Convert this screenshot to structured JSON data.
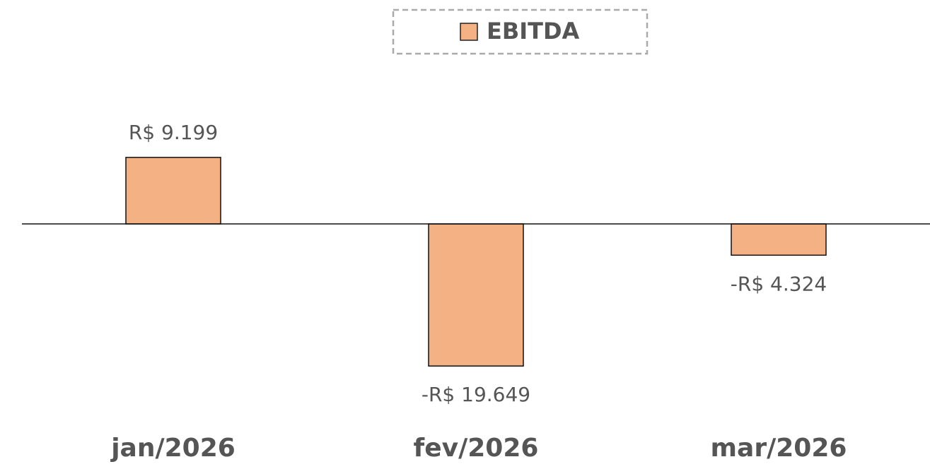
{
  "chart_data": {
    "type": "bar",
    "categories": [
      "jan/2026",
      "fev/2026",
      "mar/2026"
    ],
    "series": [
      {
        "name": "EBITDA",
        "color": "#f4b183",
        "values": [
          9199,
          -19649,
          -4324
        ],
        "value_labels": [
          "R$ 9.199",
          "-R$ 19.649",
          "-R$ 4.324"
        ]
      }
    ],
    "ylim": [
      -25000,
      21000
    ],
    "legend": "top"
  }
}
